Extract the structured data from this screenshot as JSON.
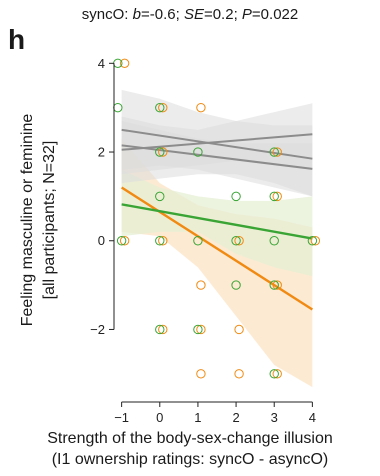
{
  "figure": {
    "panel_letter": "h",
    "title_prefix": "syncO: ",
    "title_b_label": "b",
    "title_b_value": "=-0.6; ",
    "title_se_label": "SE",
    "title_se_value": "=0.2; ",
    "title_p_label": "P",
    "title_p_value": "=0.022"
  },
  "colors": {
    "sync": "#f08a12",
    "async": "#3aa535",
    "gray": "#8c8c8c",
    "sync_band": "#fce3c4",
    "async_band": "#e6efd4",
    "gray_band": "#dcdcdc"
  },
  "chart_data": {
    "type": "scatter",
    "xlabel_line1": "Strength of the body-sex-change illusion",
    "xlabel_line2": "(I1 ownership ratings: syncO - asyncO)",
    "ylabel_line1": "Feeling masculine or feminine",
    "ylabel_line2": "[all participants; N=32]",
    "xlim": [
      -1.2,
      4.2
    ],
    "ylim": [
      -3.5,
      4.3
    ],
    "x_ticks": [
      -1,
      0,
      1,
      2,
      3,
      4
    ],
    "y_ticks": [
      -2,
      0,
      2,
      4
    ],
    "series": [
      {
        "color_key": "sync",
        "points": [
          [
            -1,
            4
          ],
          [
            0,
            3
          ],
          [
            1,
            3
          ],
          [
            0,
            2
          ],
          [
            3,
            2
          ],
          [
            3,
            1
          ],
          [
            0,
            0
          ],
          [
            2,
            0
          ],
          [
            -1,
            0
          ],
          [
            4,
            0
          ],
          [
            1,
            -1
          ],
          [
            3,
            -1
          ],
          [
            1,
            -2
          ],
          [
            2,
            -2
          ],
          [
            0,
            -2
          ],
          [
            1,
            -3
          ],
          [
            2,
            -3
          ],
          [
            3,
            -3
          ]
        ],
        "fit": {
          "x": [
            -1,
            4
          ],
          "y": [
            1.2,
            -1.55
          ]
        },
        "band": {
          "x": [
            -1,
            0,
            1,
            2,
            3,
            4
          ],
          "upper": [
            2.3,
            1.3,
            0.8,
            0.6,
            0.5,
            0.3
          ],
          "lower": [
            0.2,
            0.1,
            -0.6,
            -1.7,
            -2.8,
            -3.3
          ]
        }
      },
      {
        "color_key": "async",
        "points": [
          [
            -1.1,
            4
          ],
          [
            -1.1,
            3
          ],
          [
            0,
            3
          ],
          [
            0,
            2
          ],
          [
            1,
            2
          ],
          [
            0,
            1
          ],
          [
            2,
            1
          ],
          [
            3,
            1
          ],
          [
            3,
            2
          ],
          [
            -1,
            0
          ],
          [
            0,
            0
          ],
          [
            1,
            0
          ],
          [
            2,
            0
          ],
          [
            3,
            0
          ],
          [
            4,
            0
          ],
          [
            2,
            -1
          ],
          [
            3,
            -1
          ],
          [
            0,
            -2
          ],
          [
            1,
            -2
          ],
          [
            3,
            -3
          ]
        ],
        "fit": {
          "x": [
            -1,
            4
          ],
          "y": [
            0.82,
            0.05
          ]
        },
        "band": {
          "x": [
            -1,
            0,
            1,
            2,
            3,
            4
          ],
          "upper": [
            1.6,
            1.2,
            1.0,
            0.9,
            0.9,
            1.0
          ],
          "lower": [
            0.1,
            0.2,
            0.2,
            -0.3,
            -0.6,
            -0.8
          ]
        }
      },
      {
        "color_key": "gray",
        "fit": {
          "x": [
            -1,
            4
          ],
          "y": [
            2.5,
            1.85
          ]
        },
        "band": {
          "x": [
            -1,
            0,
            1,
            2,
            3,
            4
          ],
          "upper": [
            3.4,
            3.2,
            2.9,
            2.7,
            2.6,
            2.6
          ],
          "lower": [
            1.3,
            1.4,
            1.5,
            1.5,
            1.3,
            1.0
          ]
        }
      },
      {
        "color_key": "gray",
        "fit": {
          "x": [
            -1,
            4
          ],
          "y": [
            2.05,
            2.4
          ]
        },
        "band": {
          "x": [
            -1,
            0,
            1,
            2,
            3,
            4
          ],
          "upper": [
            2.8,
            2.6,
            2.5,
            2.7,
            2.9,
            3.1
          ],
          "lower": [
            1.5,
            1.6,
            1.7,
            1.8,
            1.7,
            1.6
          ]
        }
      },
      {
        "color_key": "gray",
        "fit": {
          "x": [
            -1,
            4
          ],
          "y": [
            2.15,
            1.62
          ]
        },
        "band": {
          "x": [
            -1,
            0,
            1,
            2,
            3,
            4
          ],
          "upper": [
            2.7,
            2.5,
            2.3,
            2.2,
            2.2,
            2.2
          ],
          "lower": [
            1.6,
            1.7,
            1.6,
            1.4,
            1.2,
            1.0
          ]
        }
      }
    ]
  }
}
